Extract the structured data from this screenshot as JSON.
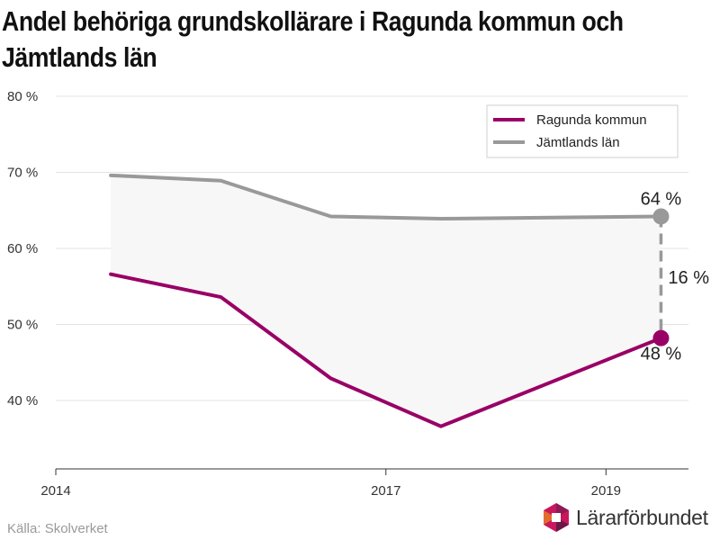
{
  "title_lines": [
    "Andel behöriga grundskollärare i Ragunda kommun och",
    "Jämtlands län"
  ],
  "source": "Källa: Skolverket",
  "logo_text": "Lärarförbundet",
  "colors": {
    "ragunda": "#990066",
    "jamtland": "#999999",
    "band": "#f7f7f7",
    "grid": "#e3e3e3"
  },
  "chart_data": {
    "type": "line",
    "title": "Andel behöriga grundskollärare i Ragunda kommun och Jämtlands län",
    "x": [
      2014.5,
      2015.5,
      2016.5,
      2017.5,
      2019.5
    ],
    "series": [
      {
        "name": "Ragunda kommun",
        "values": [
          56.6,
          53.6,
          42.9,
          36.6,
          48.2
        ]
      },
      {
        "name": "Jämtlands län",
        "values": [
          69.6,
          68.9,
          64.2,
          63.9,
          64.2
        ]
      }
    ],
    "xlim": [
      2014,
      2019.75
    ],
    "ylim": [
      31,
      80
    ],
    "yticks": [
      40,
      50,
      60,
      70,
      80
    ],
    "ytick_labels": [
      "40 %",
      "50 %",
      "60 %",
      "70 %",
      "80 %"
    ],
    "xticks": [
      2014,
      2017,
      2019
    ],
    "xtick_labels": [
      "2014",
      "2017",
      "2019"
    ],
    "legend_position": "top-right",
    "annotations": {
      "jamtland_end": "64 %",
      "ragunda_end": "48 %",
      "difference": "16 %"
    }
  }
}
